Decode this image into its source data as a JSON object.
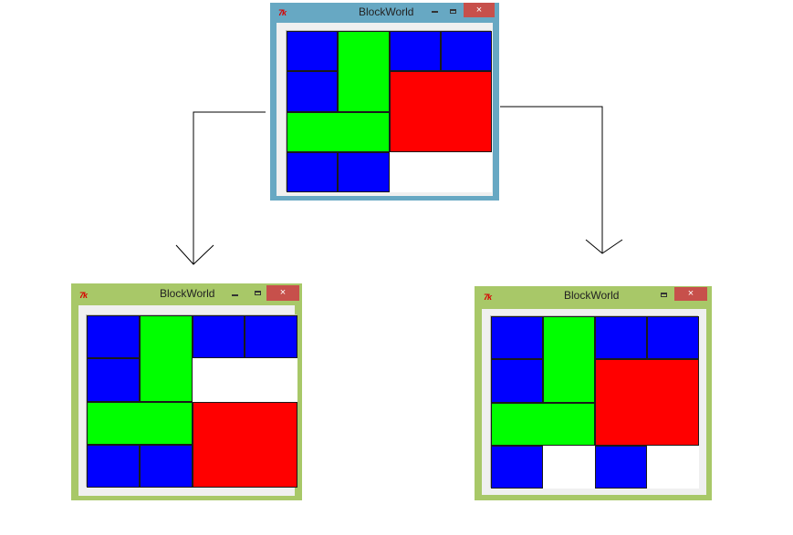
{
  "colors": {
    "blue": "#0000ff",
    "green": "#00ff00",
    "red": "#ff0000",
    "empty": "#ffffff",
    "frame_active": "#67a8c3",
    "frame_inactive": "#a8c868",
    "close_button": "#c7504b",
    "connector": "#000000"
  },
  "windows": [
    {
      "id": "top",
      "title": "BlockWorld",
      "icon_text": "7k",
      "close_label": "×",
      "state": "active",
      "blocks": [
        {
          "color": "blue",
          "col": 0,
          "row": 0,
          "w": 1,
          "h": 1
        },
        {
          "color": "green",
          "col": 1,
          "row": 0,
          "w": 1,
          "h": 2
        },
        {
          "color": "blue",
          "col": 2,
          "row": 0,
          "w": 1,
          "h": 1
        },
        {
          "color": "blue",
          "col": 3,
          "row": 0,
          "w": 1,
          "h": 1
        },
        {
          "color": "blue",
          "col": 0,
          "row": 1,
          "w": 1,
          "h": 1
        },
        {
          "color": "red",
          "col": 2,
          "row": 1,
          "w": 2,
          "h": 2
        },
        {
          "color": "green",
          "col": 0,
          "row": 2,
          "w": 2,
          "h": 1
        },
        {
          "color": "blue",
          "col": 0,
          "row": 3,
          "w": 1,
          "h": 1
        },
        {
          "color": "blue",
          "col": 1,
          "row": 3,
          "w": 1,
          "h": 1
        },
        {
          "color": "empty",
          "col": 2,
          "row": 3,
          "w": 2,
          "h": 1
        }
      ]
    },
    {
      "id": "left",
      "title": "BlockWorld",
      "icon_text": "7k",
      "close_label": "×",
      "state": "inactive",
      "blocks": [
        {
          "color": "blue",
          "col": 0,
          "row": 0,
          "w": 1,
          "h": 1
        },
        {
          "color": "green",
          "col": 1,
          "row": 0,
          "w": 1,
          "h": 2
        },
        {
          "color": "blue",
          "col": 2,
          "row": 0,
          "w": 1,
          "h": 1
        },
        {
          "color": "blue",
          "col": 3,
          "row": 0,
          "w": 1,
          "h": 1
        },
        {
          "color": "blue",
          "col": 0,
          "row": 1,
          "w": 1,
          "h": 1
        },
        {
          "color": "empty",
          "col": 2,
          "row": 1,
          "w": 2,
          "h": 1
        },
        {
          "color": "green",
          "col": 0,
          "row": 2,
          "w": 2,
          "h": 1
        },
        {
          "color": "red",
          "col": 2,
          "row": 2,
          "w": 2,
          "h": 2
        },
        {
          "color": "blue",
          "col": 0,
          "row": 3,
          "w": 1,
          "h": 1
        },
        {
          "color": "blue",
          "col": 1,
          "row": 3,
          "w": 1,
          "h": 1
        }
      ]
    },
    {
      "id": "right",
      "title": "BlockWorld",
      "icon_text": "7k",
      "close_label": "×",
      "state": "inactive",
      "blocks": [
        {
          "color": "blue",
          "col": 0,
          "row": 0,
          "w": 1,
          "h": 1
        },
        {
          "color": "green",
          "col": 1,
          "row": 0,
          "w": 1,
          "h": 2
        },
        {
          "color": "blue",
          "col": 2,
          "row": 0,
          "w": 1,
          "h": 1
        },
        {
          "color": "blue",
          "col": 3,
          "row": 0,
          "w": 1,
          "h": 1
        },
        {
          "color": "blue",
          "col": 0,
          "row": 1,
          "w": 1,
          "h": 1
        },
        {
          "color": "red",
          "col": 2,
          "row": 1,
          "w": 2,
          "h": 2
        },
        {
          "color": "green",
          "col": 0,
          "row": 2,
          "w": 2,
          "h": 1
        },
        {
          "color": "blue",
          "col": 0,
          "row": 3,
          "w": 1,
          "h": 1
        },
        {
          "color": "empty",
          "col": 1,
          "row": 3,
          "w": 1,
          "h": 1
        },
        {
          "color": "blue",
          "col": 2,
          "row": 3,
          "w": 1,
          "h": 1
        },
        {
          "color": "empty",
          "col": 3,
          "row": 3,
          "w": 1,
          "h": 1
        }
      ]
    }
  ],
  "edges": [
    {
      "from": "top",
      "to": "left"
    },
    {
      "from": "top",
      "to": "right"
    }
  ]
}
